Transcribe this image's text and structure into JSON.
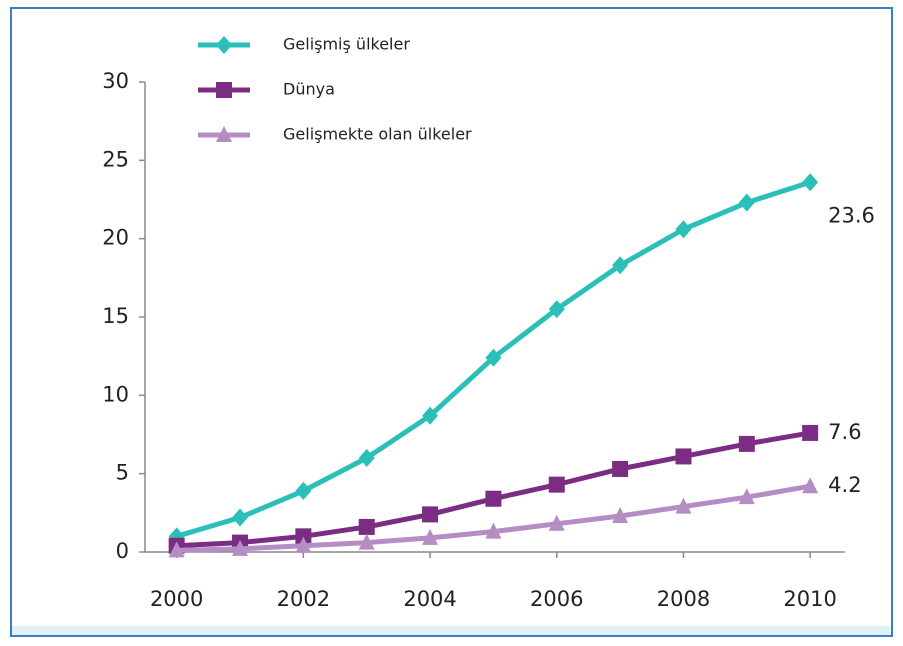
{
  "chart_data": {
    "type": "line",
    "x": [
      2000,
      2001,
      2002,
      2003,
      2004,
      2005,
      2006,
      2007,
      2008,
      2009,
      2010
    ],
    "series": [
      {
        "name": "Gelişmiş ülkeler",
        "color": "#2bbfb9",
        "marker": "diamond",
        "values": [
          1.0,
          2.2,
          3.9,
          6.0,
          8.7,
          12.4,
          15.5,
          18.3,
          20.6,
          22.3,
          23.6
        ]
      },
      {
        "name": "Dünya",
        "color": "#7b2d83",
        "marker": "square",
        "values": [
          0.4,
          0.6,
          1.0,
          1.6,
          2.4,
          3.4,
          4.3,
          5.3,
          6.1,
          6.9,
          7.6
        ]
      },
      {
        "name": "Gelişmekte olan ülkeler",
        "color": "#b58cc4",
        "marker": "triangle",
        "values": [
          0.1,
          0.2,
          0.4,
          0.6,
          0.9,
          1.3,
          1.8,
          2.3,
          2.9,
          3.5,
          4.2
        ]
      }
    ],
    "xlim": [
      1999.5,
      2010.55
    ],
    "xticks": [
      2000,
      2002,
      2004,
      2006,
      2008,
      2010
    ],
    "ylim": [
      0,
      30
    ],
    "yticks": [
      0,
      5,
      10,
      15,
      20,
      25,
      30
    ],
    "grid": false
  }
}
